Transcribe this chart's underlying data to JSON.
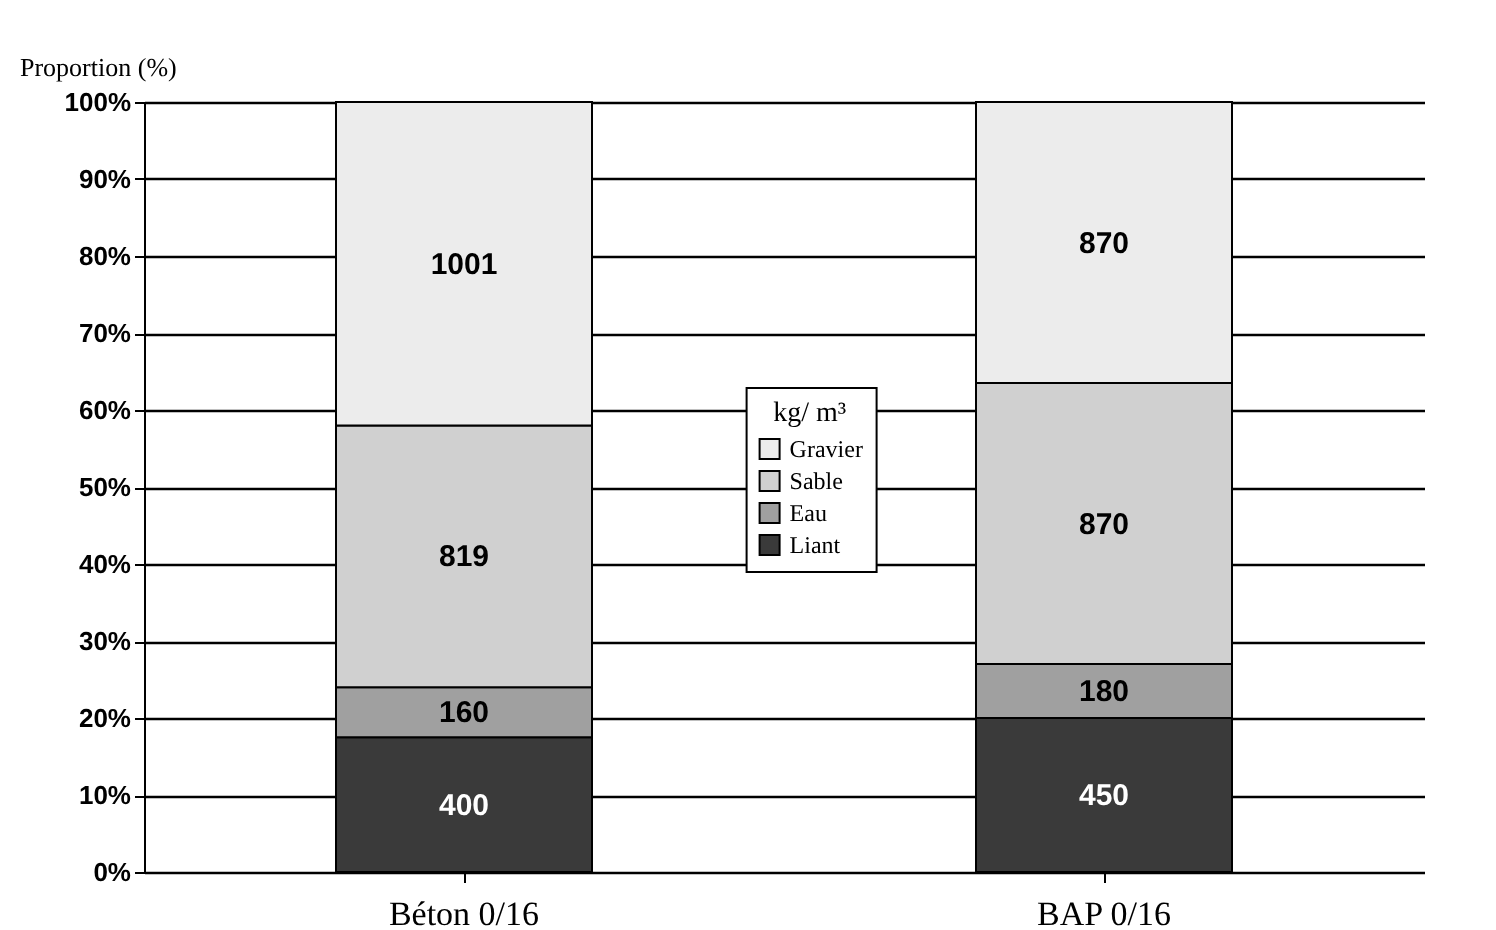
{
  "chart_data": {
    "type": "bar",
    "stacked": true,
    "ylabel": "Proportion (%)",
    "legend_title": "kg/ m³",
    "categories": [
      "Béton 0/16",
      "BAP 0/16"
    ],
    "series": [
      {
        "name": "Liant",
        "color": "#3a3a3a",
        "values": [
          17.5,
          20
        ]
      },
      {
        "name": "Eau",
        "color": "#a0a0a0",
        "values": [
          6.5,
          7
        ]
      },
      {
        "name": "Sable",
        "color": "#d0d0d0",
        "values": [
          34,
          36.5
        ]
      },
      {
        "name": "Gravier",
        "color": "#ececec",
        "values": [
          42,
          36.5
        ]
      }
    ],
    "annotations": [
      "400",
      "160",
      "819",
      "1001",
      "450",
      "180",
      "870",
      "870"
    ],
    "ylim": [
      0,
      100
    ],
    "yticks": [
      {
        "value": 0,
        "label": "0%"
      },
      {
        "value": 10,
        "label": "10%"
      },
      {
        "value": 20,
        "label": "20%"
      },
      {
        "value": 30,
        "label": "30%"
      },
      {
        "value": 40,
        "label": "40%"
      },
      {
        "value": 50,
        "label": "50%"
      },
      {
        "value": 60,
        "label": "60%"
      },
      {
        "value": 70,
        "label": "70%"
      },
      {
        "value": 80,
        "label": "80%"
      },
      {
        "value": 90,
        "label": "90%"
      },
      {
        "value": 100,
        "label": "100%"
      }
    ],
    "grid": "y",
    "legend": "center"
  }
}
